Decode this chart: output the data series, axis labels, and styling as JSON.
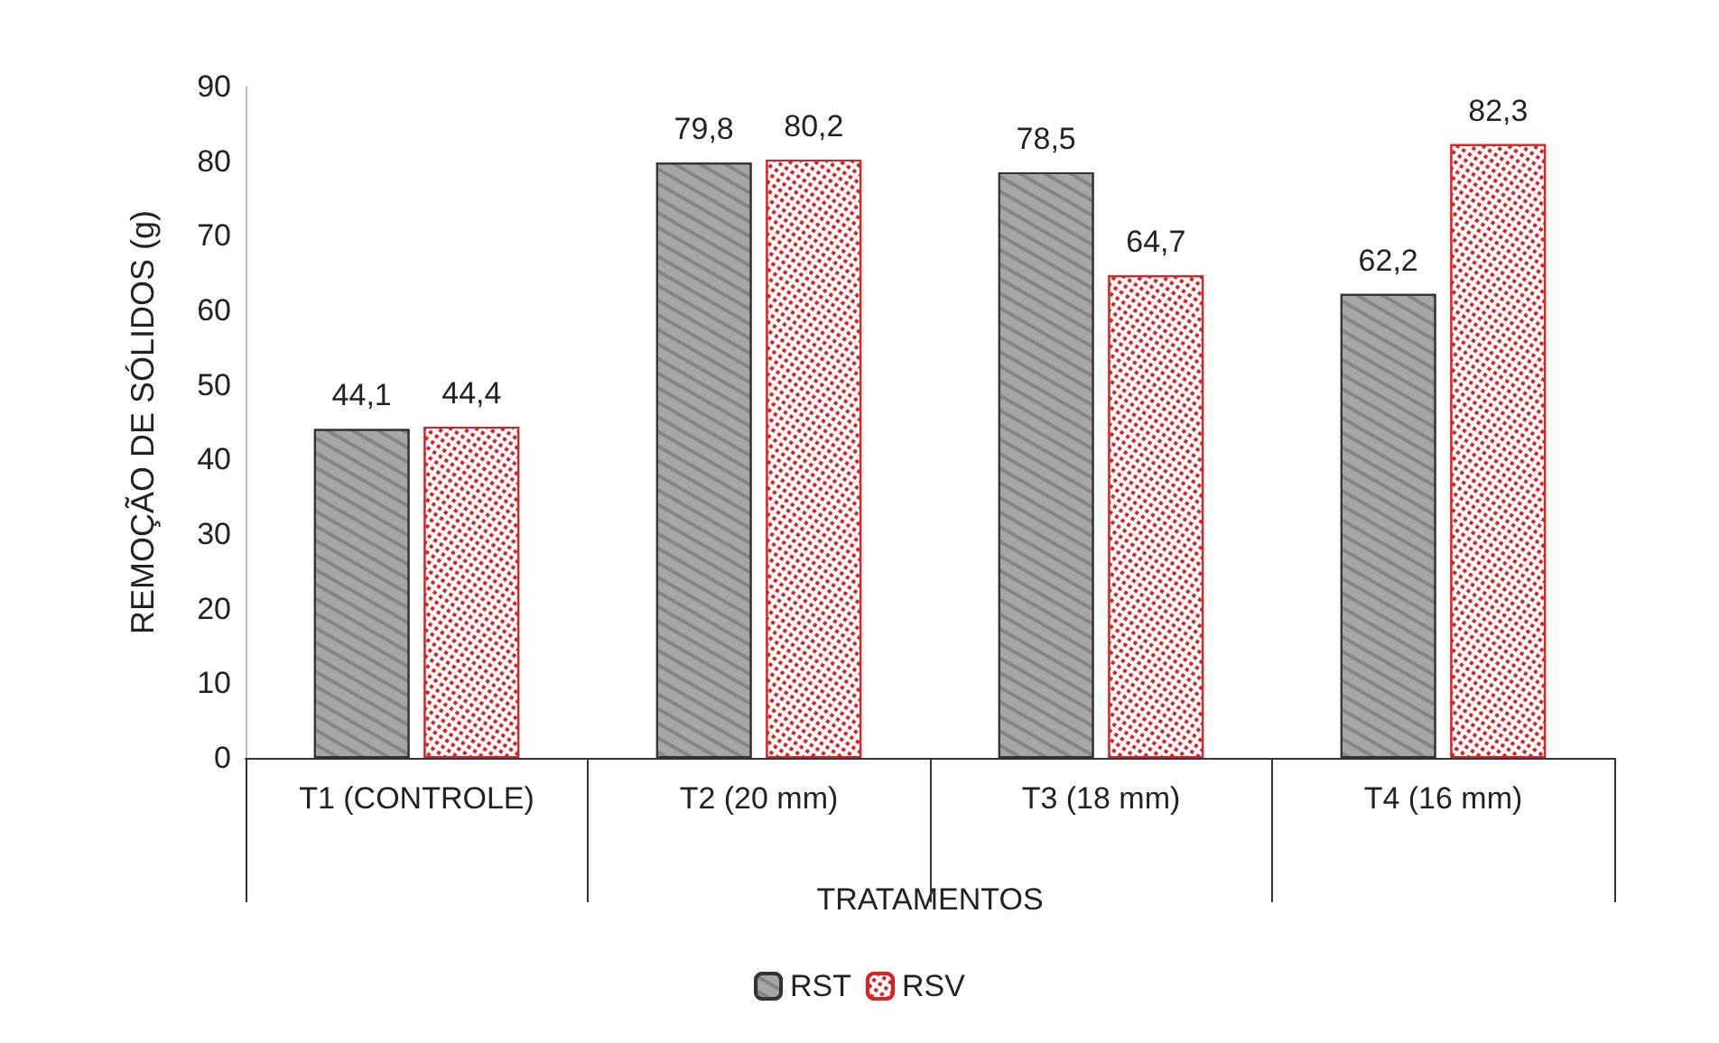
{
  "chart_data": {
    "type": "bar",
    "xlabel": "TRATAMENTOS",
    "ylabel": "REMOÇÃO DE SÓLIDOS (g)",
    "categories": [
      "T1 (CONTROLE)",
      "T2 (20 mm)",
      "T3 (18 mm)",
      "T4 (16 mm)"
    ],
    "series": [
      {
        "name": "RST",
        "color": "#a6a6a6",
        "values": [
          44.1,
          79.8,
          78.5,
          62.2
        ],
        "value_labels": [
          "44,1",
          "79,8",
          "78,5",
          "62,2"
        ]
      },
      {
        "name": "RSV",
        "color": "#e02020",
        "values": [
          44.4,
          80.2,
          64.7,
          82.3
        ],
        "value_labels": [
          "44,4",
          "80,2",
          "64,7",
          "82,3"
        ]
      }
    ],
    "ylim": [
      0,
      90
    ],
    "yticks": [
      0,
      10,
      20,
      30,
      40,
      50,
      60,
      70,
      80,
      90
    ],
    "grid": false,
    "legend": "bottom"
  }
}
